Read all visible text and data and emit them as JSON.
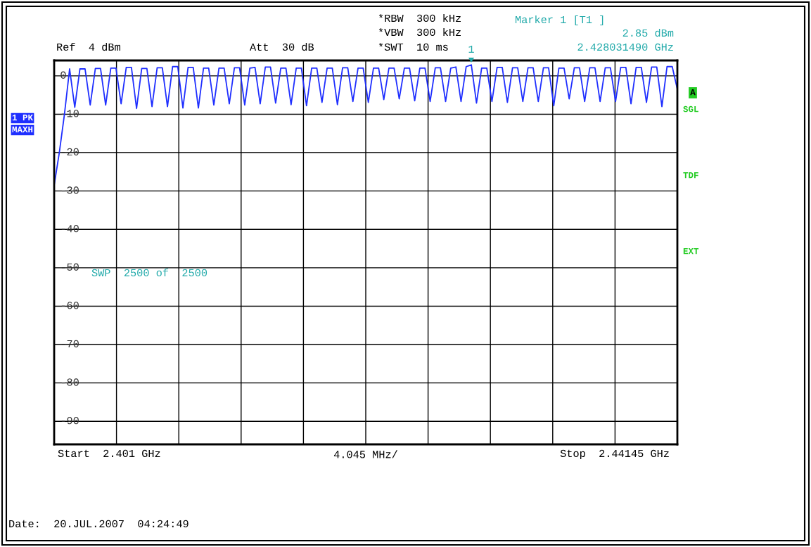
{
  "chart_data": {
    "type": "line",
    "xlabel": "4.045 MHz/",
    "categories": [
      null,
      null,
      null,
      null,
      null,
      null,
      null,
      null,
      null,
      null,
      null,
      null,
      null,
      null,
      null,
      null,
      null,
      null,
      null,
      null,
      null,
      null,
      null,
      null,
      null,
      null,
      null,
      null,
      null,
      null,
      null,
      null,
      null,
      null,
      null,
      null,
      null,
      null,
      null,
      null,
      null,
      null,
      null,
      null,
      null,
      null,
      null,
      null,
      null,
      null,
      null,
      null,
      null,
      null,
      null,
      null,
      null,
      null,
      null,
      null,
      null,
      null,
      null,
      null,
      null,
      null,
      null,
      null,
      null,
      null,
      null,
      null,
      null,
      null,
      null,
      null,
      null,
      null,
      null,
      null,
      null,
      null,
      null,
      null,
      null,
      null,
      null,
      null,
      null,
      null,
      null,
      null,
      null,
      null,
      null,
      null,
      null,
      null,
      null,
      null,
      null,
      null,
      null,
      null,
      null,
      null,
      null,
      null,
      null,
      null,
      null,
      null,
      null,
      null,
      null,
      null,
      null,
      null,
      null,
      null,
      null,
      null
    ],
    "series": [
      {
        "color": "#1f2fff",
        "values": [
          -28.5,
          -20,
          -10,
          1.8,
          -8.2,
          1.8,
          1.8,
          -7.6,
          1.9,
          1.9,
          -7.6,
          2.0,
          2.0,
          -7.3,
          2.2,
          2.2,
          -8.5,
          1.9,
          1.9,
          -8.0,
          2.1,
          2.1,
          -8.0,
          2.4,
          2.4,
          -8.4,
          2.2,
          2.2,
          -8.4,
          2.0,
          2.0,
          -7.6,
          2.0,
          2.0,
          -7.3,
          2.1,
          2.1,
          -7.6,
          2.0,
          2.2,
          -7.3,
          2.3,
          2.3,
          -7.1,
          2.0,
          2.0,
          -7.5,
          2.0,
          2.0,
          -7.8,
          2.0,
          2.0,
          -6.9,
          2.0,
          2.0,
          -7.5,
          2.1,
          2.1,
          -6.7,
          2.0,
          2.0,
          -6.9,
          2.0,
          2.0,
          -6.2,
          2.0,
          2.0,
          -6.0,
          2.0,
          2.0,
          -6.5,
          2.0,
          2.0,
          -6.7,
          2.1,
          2.1,
          -6.7,
          2.0,
          2.3,
          -6.7,
          2.4,
          2.85,
          -7.1,
          2.0,
          2.0,
          -6.7,
          2.2,
          2.2,
          -6.9,
          2.1,
          2.1,
          -6.7,
          2.1,
          2.1,
          -6.7,
          2.1,
          2.1,
          -7.8,
          2.0,
          2.0,
          -6.0,
          2.1,
          2.1,
          -6.7,
          2.1,
          2.1,
          -6.7,
          2.1,
          2.1,
          -6.7,
          2.2,
          2.2,
          -7.3,
          2.2,
          2.2,
          -6.9,
          2.3,
          2.3,
          -8.0,
          2.4,
          2.4,
          -3.5
        ]
      }
    ],
    "ylim": [
      -96,
      4
    ],
    "yticks": [
      0,
      -10,
      -20,
      -30,
      -40,
      -50,
      -60,
      -70,
      -80,
      -90
    ],
    "grid": "y",
    "tick_labels": "y",
    "marker": "none",
    "line_style": "solid",
    "annotations": [
      "Ref  4 dBm",
      "Att  30 dB",
      "*RBW  300 kHz",
      "*VBW  300 kHz",
      "*SWT  10 ms",
      "Marker 1 [T1 ]",
      "2.85 dBm",
      "2.428031490 GHz",
      "1 PK",
      "MAXH",
      "A",
      "SGL",
      "TDF",
      "EXT",
      "SWP  2500 of  2500",
      "Start  2.401 GHz",
      "Stop  2.44145 GHz",
      "Date:  20.JUL.2007  04:24:49",
      "1"
    ]
  }
}
